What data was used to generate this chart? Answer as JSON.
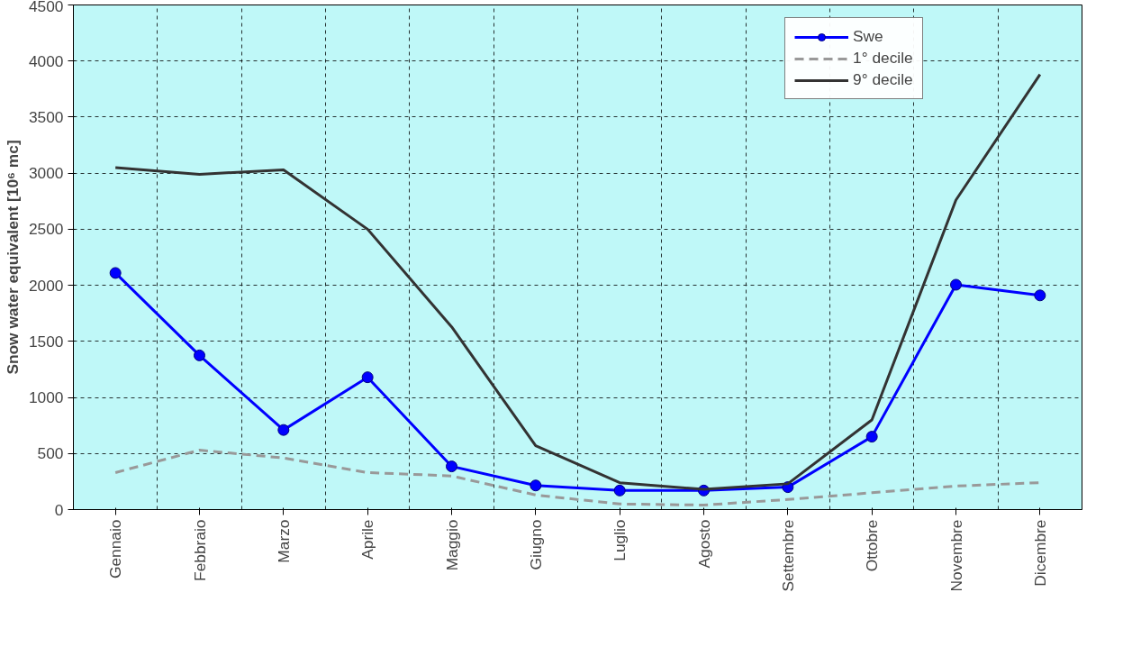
{
  "chart_data": {
    "type": "line",
    "ylabel": "Snow water equivalent [10⁶ mc]",
    "categories": [
      "Gennaio",
      "Febbraio",
      "Marzo",
      "Aprile",
      "Maggio",
      "Giugno",
      "Luglio",
      "Agosto",
      "Settembre",
      "Ottobre",
      "Novembre",
      "Dicembre"
    ],
    "series": [
      {
        "name": "Swe",
        "color": "#0000ff",
        "marker": "circle",
        "line_style": "solid",
        "values": [
          2110,
          1375,
          710,
          1180,
          385,
          215,
          170,
          170,
          200,
          650,
          2005,
          1910
        ]
      },
      {
        "name": "1° decile",
        "color": "#999999",
        "marker": "none",
        "line_style": "dashed",
        "values": [
          330,
          530,
          460,
          330,
          300,
          130,
          50,
          40,
          90,
          150,
          210,
          240
        ]
      },
      {
        "name": "9° decile",
        "color": "#333333",
        "marker": "none",
        "line_style": "solid",
        "values": [
          3050,
          2990,
          3030,
          2500,
          1630,
          570,
          240,
          180,
          230,
          800,
          2760,
          3880
        ]
      }
    ],
    "ylim": [
      0,
      4500
    ],
    "yticks": [
      0,
      500,
      1000,
      1500,
      2000,
      2500,
      3000,
      3500,
      4000,
      4500
    ],
    "grid": true,
    "legend": "top right"
  }
}
